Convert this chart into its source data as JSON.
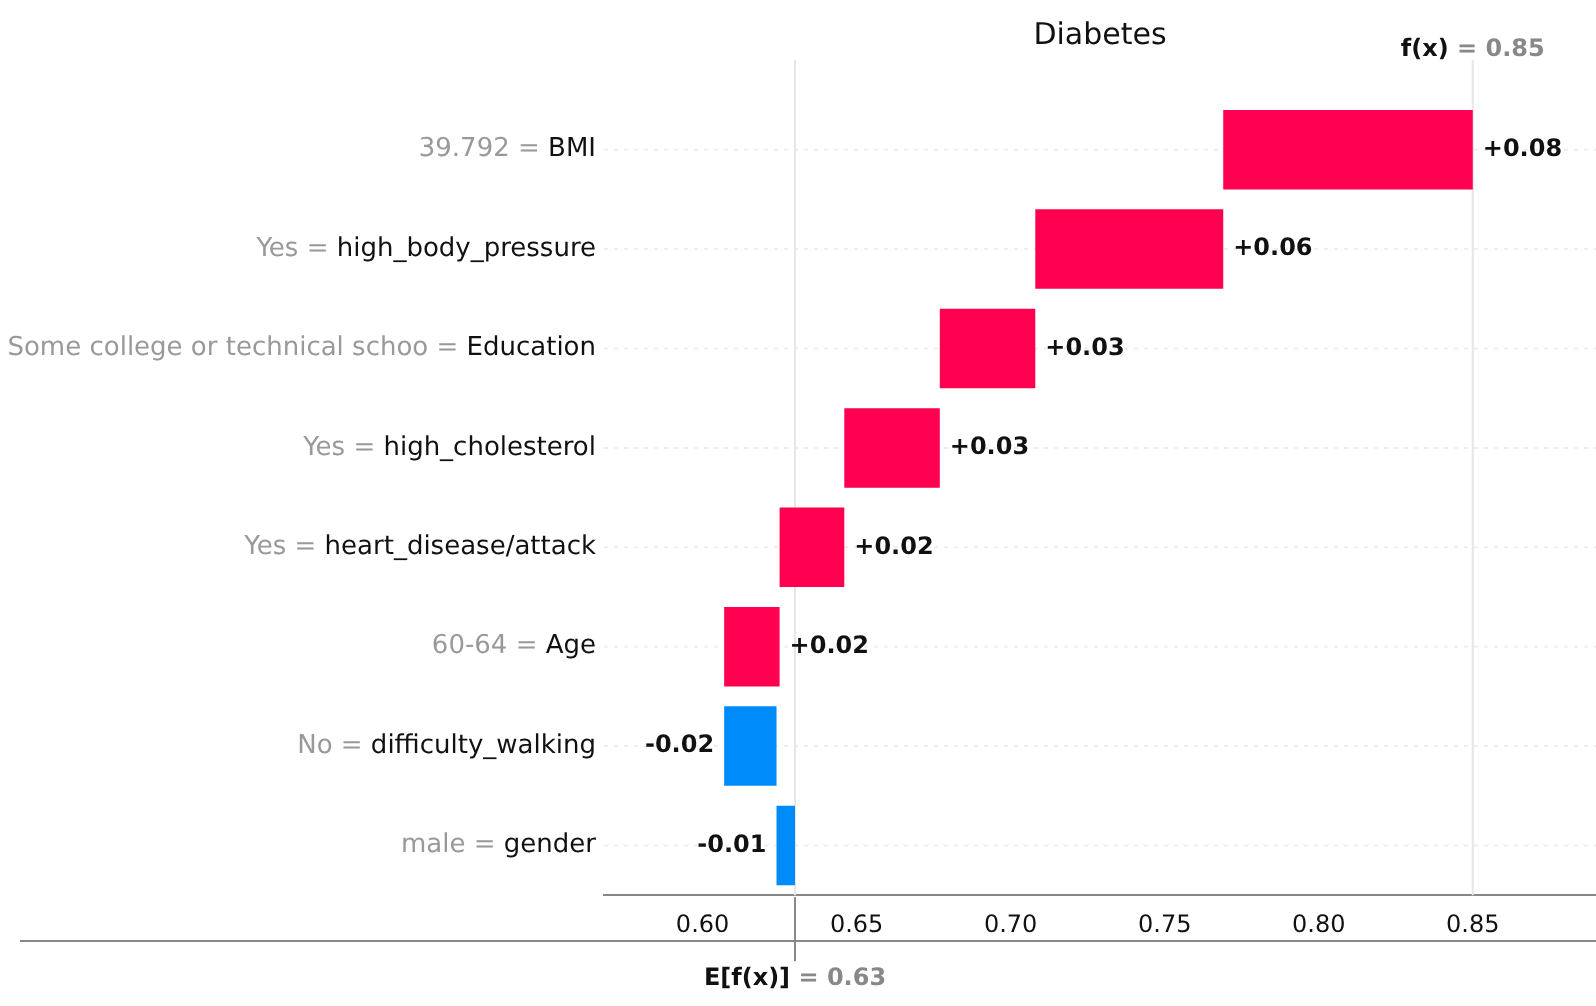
{
  "chart_data": {
    "type": "bar",
    "orientation": "horizontal",
    "title": "Diabetes",
    "categories": [
      "39.792 = BMI",
      "Yes = high_body_pressure",
      "Some college or technical schoo = Education",
      "Yes = high_cholesterol",
      "Yes = heart_disease/attack",
      "60-64 = Age",
      "No = difficulty_walking",
      "male = gender"
    ],
    "values": [
      0.081,
      0.061,
      0.031,
      0.031,
      0.021,
      0.018,
      -0.017,
      -0.006
    ],
    "base": [
      0.769,
      0.708,
      0.677,
      0.646,
      0.625,
      0.607,
      0.624,
      0.63
    ],
    "colors": [
      "#ff0051",
      "#ff0051",
      "#ff0051",
      "#ff0051",
      "#ff0051",
      "#ff0051",
      "#008bfb",
      "#008bfb"
    ],
    "value_labels": [
      "+0.08",
      "+0.06",
      "+0.03",
      "+0.03",
      "+0.02",
      "+0.02",
      "-0.02",
      "-0.01"
    ],
    "xlim": [
      0.568,
      0.89
    ],
    "xticks": [
      {
        "value": 0.6,
        "label": "0.60"
      },
      {
        "value": 0.65,
        "label": "0.65"
      },
      {
        "value": 0.7,
        "label": "0.70"
      },
      {
        "value": 0.75,
        "label": "0.75"
      },
      {
        "value": 0.8,
        "label": "0.80"
      },
      {
        "value": 0.85,
        "label": "0.85"
      }
    ],
    "ref_lines": [
      {
        "axis": "x",
        "value": 0.85,
        "label": "f(x) = 0.85",
        "color": "#e6e6e6"
      },
      {
        "axis": "x",
        "value": 0.63,
        "label": "E[f(x)] = 0.63",
        "color": "#e6e6e6"
      }
    ],
    "grid": "y",
    "legend": false
  }
}
